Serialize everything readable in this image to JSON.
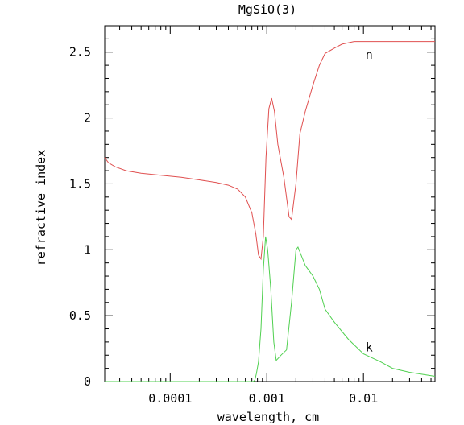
{
  "chart_data": {
    "type": "line",
    "title": "MgSiO(3)",
    "xlabel": "wavelength, cm",
    "ylabel": "refractive index",
    "x_scale": "log",
    "xlim": [
      2.1e-05,
      0.055
    ],
    "ylim": [
      0,
      2.7
    ],
    "x_tick_labels": [
      {
        "value": 0.0001,
        "label": "0.0001"
      },
      {
        "value": 0.001,
        "label": "0.001"
      },
      {
        "value": 0.01,
        "label": "0.01"
      }
    ],
    "y_tick_labels": [
      {
        "value": 0,
        "label": "0"
      },
      {
        "value": 0.5,
        "label": "0.5"
      },
      {
        "value": 1,
        "label": "1"
      },
      {
        "value": 1.5,
        "label": "1.5"
      },
      {
        "value": 2,
        "label": "2"
      },
      {
        "value": 2.5,
        "label": "2.5"
      }
    ],
    "grid": false,
    "series": [
      {
        "name": "n",
        "color": "#e05050",
        "label_at": {
          "x": 0.0105,
          "y": 2.48
        },
        "points": [
          [
            2.1e-05,
            1.7
          ],
          [
            2.3e-05,
            1.66
          ],
          [
            2.7e-05,
            1.63
          ],
          [
            3.5e-05,
            1.6
          ],
          [
            5e-05,
            1.58
          ],
          [
            8e-05,
            1.565
          ],
          [
            0.00013,
            1.55
          ],
          [
            0.0002,
            1.53
          ],
          [
            0.0003,
            1.51
          ],
          [
            0.0004,
            1.49
          ],
          [
            0.0005,
            1.46
          ],
          [
            0.0006,
            1.4
          ],
          [
            0.0007,
            1.28
          ],
          [
            0.00077,
            1.12
          ],
          [
            0.00082,
            0.96
          ],
          [
            0.00087,
            0.93
          ],
          [
            0.00092,
            1.1
          ],
          [
            0.00098,
            1.7
          ],
          [
            0.00105,
            2.07
          ],
          [
            0.00112,
            2.15
          ],
          [
            0.0012,
            2.05
          ],
          [
            0.0013,
            1.8
          ],
          [
            0.0015,
            1.55
          ],
          [
            0.0017,
            1.25
          ],
          [
            0.0018,
            1.23
          ],
          [
            0.002,
            1.5
          ],
          [
            0.0022,
            1.88
          ],
          [
            0.0025,
            2.05
          ],
          [
            0.003,
            2.25
          ],
          [
            0.0035,
            2.4
          ],
          [
            0.004,
            2.49
          ],
          [
            0.005,
            2.53
          ],
          [
            0.006,
            2.56
          ],
          [
            0.008,
            2.58
          ],
          [
            0.01,
            2.58
          ],
          [
            0.02,
            2.58
          ],
          [
            0.055,
            2.58
          ]
        ]
      },
      {
        "name": "k",
        "color": "#50d050",
        "label_at": {
          "x": 0.0105,
          "y": 0.26
        },
        "points": [
          [
            2.1e-05,
            0
          ],
          [
            0.0001,
            0
          ],
          [
            0.0005,
            0
          ],
          [
            0.00072,
            0
          ],
          [
            0.00075,
            0.01
          ],
          [
            0.00078,
            0.06
          ],
          [
            0.00082,
            0.15
          ],
          [
            0.00087,
            0.4
          ],
          [
            0.00092,
            0.85
          ],
          [
            0.00097,
            1.1
          ],
          [
            0.00102,
            1.0
          ],
          [
            0.0011,
            0.7
          ],
          [
            0.00118,
            0.3
          ],
          [
            0.00125,
            0.16
          ],
          [
            0.0014,
            0.2
          ],
          [
            0.0016,
            0.24
          ],
          [
            0.0018,
            0.6
          ],
          [
            0.002,
            1.0
          ],
          [
            0.0021,
            1.02
          ],
          [
            0.0025,
            0.88
          ],
          [
            0.003,
            0.8
          ],
          [
            0.0035,
            0.7
          ],
          [
            0.004,
            0.55
          ],
          [
            0.005,
            0.45
          ],
          [
            0.007,
            0.32
          ],
          [
            0.01,
            0.21
          ],
          [
            0.015,
            0.15
          ],
          [
            0.02,
            0.1
          ],
          [
            0.03,
            0.07
          ],
          [
            0.055,
            0.04
          ]
        ]
      }
    ]
  }
}
